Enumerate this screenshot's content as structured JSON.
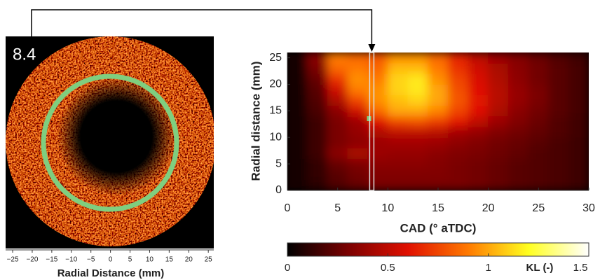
{
  "chart_data": [
    {
      "type": "image",
      "frame": 8.4,
      "xlabel": "Radial Distance (mm)",
      "xlim": [
        -26.8,
        26.4
      ],
      "xticks": [
        {
          "value": -25,
          "label": "−25"
        },
        {
          "value": -20,
          "label": "−20"
        },
        {
          "value": -15,
          "label": "−15"
        },
        {
          "value": -10,
          "label": "−10"
        },
        {
          "value": -5,
          "label": "−5"
        },
        0,
        5,
        10,
        15,
        20,
        25
      ]
    },
    {
      "type": "heatmap",
      "xlabel": "CAD (° aTDC)",
      "ylabel": "Radial distance (mm)",
      "xlim": [
        0,
        30
      ],
      "xticks": [
        0,
        5,
        10,
        15,
        20,
        25,
        30
      ],
      "ylim": [
        0,
        26
      ],
      "yticks": [
        0,
        5,
        10,
        15,
        20,
        25
      ],
      "x_bins": [
        0,
        2,
        4,
        6,
        8,
        10,
        12,
        14,
        16,
        18,
        20,
        22,
        24,
        26,
        28,
        30
      ],
      "y_bins": [
        0,
        2,
        4,
        6,
        8,
        10,
        12,
        14,
        16,
        18,
        20,
        22,
        24,
        26
      ],
      "z": [
        [
          0.05,
          0.1,
          0.2,
          0.25,
          0.3,
          0.3,
          0.3,
          0.3,
          0.3,
          0.28,
          0.25,
          0.22,
          0.2,
          0.18,
          0.15
        ],
        [
          0.05,
          0.12,
          0.22,
          0.28,
          0.32,
          0.32,
          0.32,
          0.32,
          0.3,
          0.28,
          0.25,
          0.22,
          0.2,
          0.18,
          0.15
        ],
        [
          0.05,
          0.12,
          0.25,
          0.3,
          0.35,
          0.35,
          0.35,
          0.33,
          0.3,
          0.28,
          0.25,
          0.22,
          0.2,
          0.18,
          0.15
        ],
        [
          0.05,
          0.15,
          0.35,
          0.45,
          0.4,
          0.38,
          0.38,
          0.35,
          0.32,
          0.3,
          0.27,
          0.24,
          0.2,
          0.18,
          0.15
        ],
        [
          0.05,
          0.15,
          0.3,
          0.35,
          0.4,
          0.42,
          0.42,
          0.4,
          0.36,
          0.32,
          0.28,
          0.25,
          0.22,
          0.18,
          0.15
        ],
        [
          0.05,
          0.15,
          0.3,
          0.38,
          0.45,
          0.5,
          0.5,
          0.48,
          0.42,
          0.38,
          0.32,
          0.28,
          0.24,
          0.2,
          0.16
        ],
        [
          0.05,
          0.15,
          0.3,
          0.4,
          0.6,
          0.75,
          0.78,
          0.72,
          0.62,
          0.5,
          0.4,
          0.32,
          0.26,
          0.2,
          0.16
        ],
        [
          0.05,
          0.18,
          0.35,
          0.55,
          0.85,
          1.0,
          1.0,
          0.92,
          0.75,
          0.6,
          0.45,
          0.35,
          0.28,
          0.22,
          0.17
        ],
        [
          0.05,
          0.2,
          0.45,
          0.75,
          0.95,
          1.05,
          1.1,
          1.0,
          0.8,
          0.62,
          0.48,
          0.38,
          0.3,
          0.22,
          0.17
        ],
        [
          0.05,
          0.22,
          0.55,
          0.9,
          0.95,
          1.1,
          1.15,
          1.0,
          0.78,
          0.6,
          0.48,
          0.38,
          0.3,
          0.22,
          0.17
        ],
        [
          0.05,
          0.25,
          0.7,
          0.95,
          0.9,
          1.1,
          1.15,
          0.95,
          0.75,
          0.58,
          0.46,
          0.36,
          0.28,
          0.22,
          0.17
        ],
        [
          0.05,
          0.3,
          0.85,
          0.9,
          0.85,
          1.05,
          1.05,
          0.9,
          0.7,
          0.55,
          0.44,
          0.35,
          0.28,
          0.22,
          0.17
        ],
        [
          0.05,
          0.35,
          0.9,
          0.85,
          0.8,
          0.95,
          0.95,
          0.85,
          0.65,
          0.5,
          0.4,
          0.33,
          0.26,
          0.2,
          0.16
        ]
      ],
      "colormap": [
        "#000000",
        "#7a0000",
        "#e01000",
        "#ff7a00",
        "#ffff20",
        "#ffffff"
      ],
      "clim": [
        0,
        1.5
      ],
      "cticks": [
        0,
        0.5,
        1,
        1.5
      ],
      "clabel": "KL (-)"
    }
  ]
}
